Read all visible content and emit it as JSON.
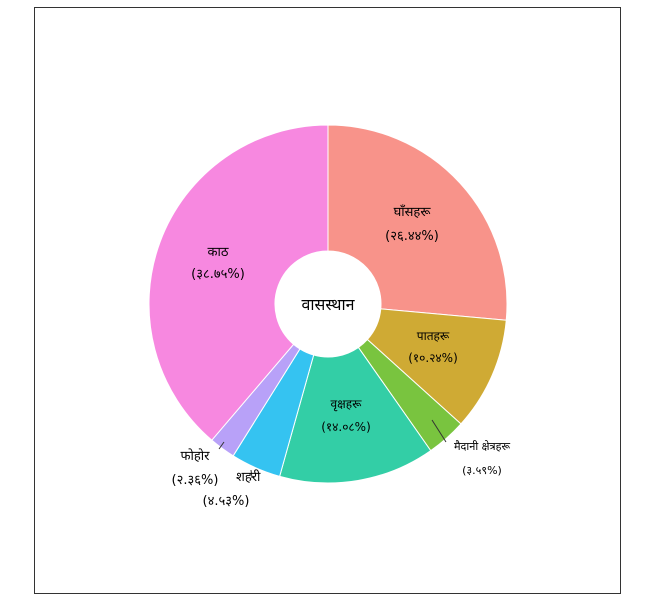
{
  "chart_data": {
    "type": "pie",
    "variant": "donut",
    "title": "",
    "center_label": "वासस्थान",
    "slices": [
      {
        "name": "घाँसहरू",
        "pct_label": "(२६.४४%)",
        "value": 26.44,
        "color": "#F8938A"
      },
      {
        "name": "पातहरू",
        "pct_label": "(१०.२४%)",
        "value": 10.24,
        "color": "#CFAA34"
      },
      {
        "name": "मैदानी क्षेत्रहरू",
        "pct_label": "(३.५९%)",
        "value": 3.59,
        "color": "#79C43F"
      },
      {
        "name": "वृक्षहरू",
        "pct_label": "(१४.०८%)",
        "value": 14.08,
        "color": "#33CEA6"
      },
      {
        "name": "शहरी",
        "pct_label": "(४.५३%)",
        "value": 4.53,
        "color": "#35C3F1"
      },
      {
        "name": "फोहोर",
        "pct_label": "(२.३६%)",
        "value": 2.36,
        "color": "#B8A1F8"
      },
      {
        "name": "काठ",
        "pct_label": "(३८.७५%)",
        "value": 38.75,
        "color": "#F788E0"
      }
    ],
    "legend": "none",
    "grid": false
  }
}
